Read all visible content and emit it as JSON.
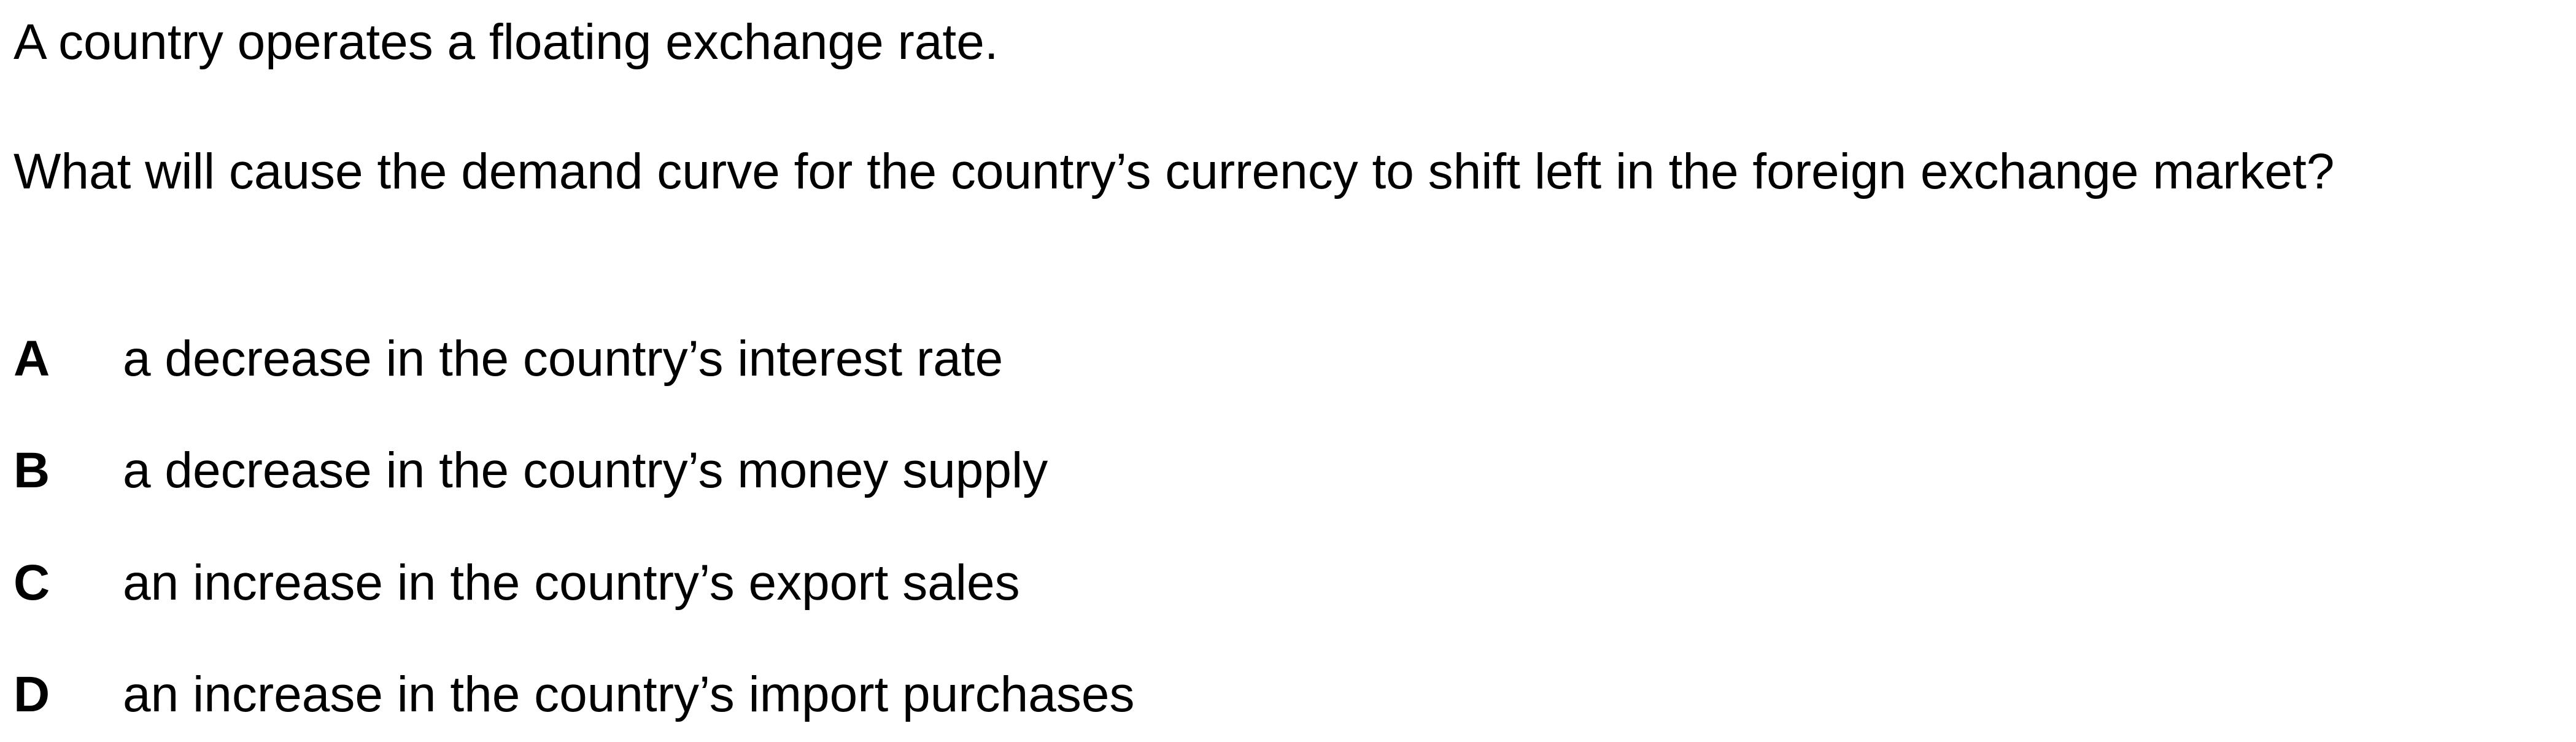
{
  "question": {
    "intro": "A country operates a floating exchange rate.",
    "stem": "What will cause the demand curve for the country’s currency to shift left in the foreign exchange market?",
    "options": [
      {
        "letter": "A",
        "text": "a decrease in the country’s interest rate"
      },
      {
        "letter": "B",
        "text": "a decrease in the country’s money supply"
      },
      {
        "letter": "C",
        "text": "an increase in the country’s export sales"
      },
      {
        "letter": "D",
        "text": "an increase in the country’s import purchases"
      }
    ]
  }
}
